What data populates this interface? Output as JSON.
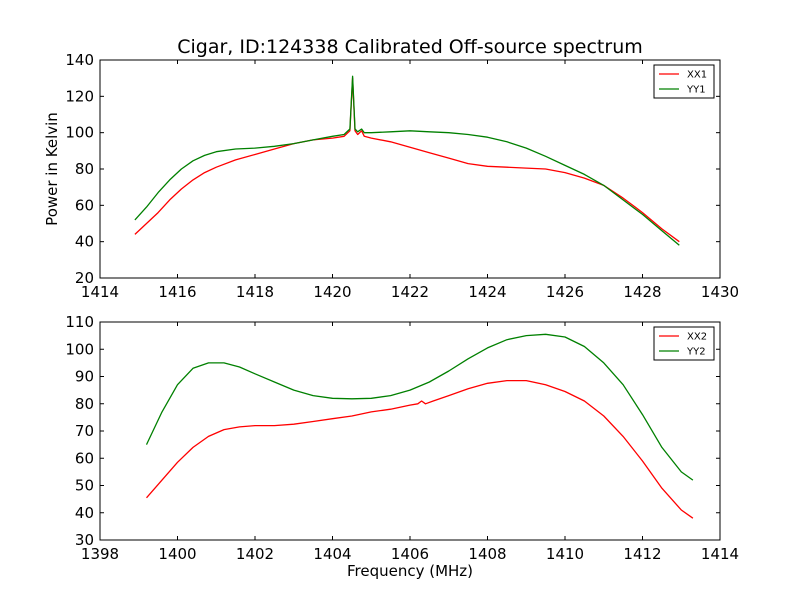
{
  "figure": {
    "title": "Cigar, ID:124338 Calibrated Off-source spectrum",
    "xlabel": "Frequency (MHz)"
  },
  "chart_data": [
    {
      "type": "line",
      "title": "Cigar, ID:124338 Calibrated Off-source spectrum",
      "xlabel": "",
      "ylabel": "Power in Kelvin",
      "xlim": [
        1414,
        1430
      ],
      "ylim": [
        20,
        140
      ],
      "xticks": [
        1414,
        1416,
        1418,
        1420,
        1422,
        1424,
        1426,
        1428,
        1430
      ],
      "yticks": [
        20,
        40,
        60,
        80,
        100,
        120,
        140
      ],
      "grid": false,
      "legend": "top-right",
      "series": [
        {
          "name": "XX1",
          "color": "#ff0000",
          "x": [
            1414.9,
            1415.2,
            1415.5,
            1415.8,
            1416.1,
            1416.4,
            1416.7,
            1417.0,
            1417.5,
            1418.0,
            1418.5,
            1419.0,
            1419.5,
            1420.0,
            1420.3,
            1420.45,
            1420.52,
            1420.58,
            1420.65,
            1420.75,
            1420.82,
            1421.0,
            1421.5,
            1422.0,
            1422.5,
            1423.0,
            1423.5,
            1424.0,
            1424.5,
            1425.0,
            1425.5,
            1426.0,
            1426.5,
            1427.0,
            1427.5,
            1428.0,
            1428.5,
            1428.95
          ],
          "y": [
            44,
            50,
            56,
            63,
            69,
            74,
            78,
            81,
            85,
            88,
            91,
            94,
            96,
            97,
            98,
            101,
            130,
            101,
            99,
            101,
            98,
            97,
            95,
            92,
            89,
            86,
            83,
            81.5,
            81,
            80.5,
            80,
            78,
            75,
            71,
            64,
            56,
            47,
            40
          ]
        },
        {
          "name": "YY1",
          "color": "#008000",
          "x": [
            1414.9,
            1415.2,
            1415.5,
            1415.8,
            1416.1,
            1416.4,
            1416.7,
            1417.0,
            1417.5,
            1418.0,
            1418.5,
            1419.0,
            1419.5,
            1420.0,
            1420.3,
            1420.45,
            1420.52,
            1420.58,
            1420.65,
            1420.75,
            1420.82,
            1421.0,
            1421.5,
            1422.0,
            1422.5,
            1423.0,
            1423.5,
            1424.0,
            1424.5,
            1425.0,
            1425.5,
            1426.0,
            1426.5,
            1427.0,
            1427.5,
            1428.0,
            1428.5,
            1428.95
          ],
          "y": [
            52,
            59,
            67,
            74,
            80,
            84.5,
            87.5,
            89.5,
            91,
            91.5,
            92.5,
            94,
            96,
            98,
            99,
            102,
            131,
            102,
            100.5,
            102,
            100,
            100,
            100.5,
            101,
            100.5,
            100,
            99,
            97.5,
            95,
            91.5,
            87,
            82,
            77,
            71,
            63,
            55,
            46,
            38
          ]
        }
      ]
    },
    {
      "type": "line",
      "title": "",
      "xlabel": "Frequency (MHz)",
      "ylabel": "",
      "xlim": [
        1398,
        1414
      ],
      "ylim": [
        30,
        110
      ],
      "xticks": [
        1398,
        1400,
        1402,
        1404,
        1406,
        1408,
        1410,
        1412,
        1414
      ],
      "yticks": [
        30,
        40,
        50,
        60,
        70,
        80,
        90,
        100,
        110
      ],
      "grid": false,
      "legend": "top-right",
      "series": [
        {
          "name": "XX2",
          "color": "#ff0000",
          "x": [
            1399.2,
            1399.6,
            1400.0,
            1400.4,
            1400.8,
            1401.2,
            1401.6,
            1402.0,
            1402.5,
            1403.0,
            1403.5,
            1404.0,
            1404.5,
            1405.0,
            1405.5,
            1406.0,
            1406.2,
            1406.3,
            1406.4,
            1406.6,
            1407.0,
            1407.5,
            1408.0,
            1408.5,
            1409.0,
            1409.5,
            1410.0,
            1410.5,
            1411.0,
            1411.5,
            1412.0,
            1412.5,
            1413.0,
            1413.3
          ],
          "y": [
            45.5,
            52,
            58.5,
            64,
            68,
            70.5,
            71.5,
            72,
            72,
            72.5,
            73.5,
            74.5,
            75.5,
            77,
            78,
            79.5,
            80,
            81,
            80,
            81,
            83,
            85.5,
            87.5,
            88.5,
            88.5,
            87,
            84.5,
            81,
            75.5,
            68,
            59,
            49,
            41,
            38
          ]
        },
        {
          "name": "YY2",
          "color": "#008000",
          "x": [
            1399.2,
            1399.6,
            1400.0,
            1400.4,
            1400.8,
            1401.2,
            1401.6,
            1402.0,
            1402.5,
            1403.0,
            1403.5,
            1404.0,
            1404.5,
            1405.0,
            1405.5,
            1406.0,
            1406.5,
            1407.0,
            1407.5,
            1408.0,
            1408.5,
            1409.0,
            1409.5,
            1410.0,
            1410.5,
            1411.0,
            1411.5,
            1412.0,
            1412.5,
            1413.0,
            1413.3
          ],
          "y": [
            65,
            77,
            87,
            93,
            95,
            95,
            93.5,
            91,
            88,
            85,
            83,
            82,
            81.8,
            82,
            83,
            85,
            88,
            92,
            96.5,
            100.5,
            103.5,
            105,
            105.5,
            104.5,
            101,
            95,
            87,
            76,
            64,
            55,
            52
          ]
        }
      ]
    }
  ]
}
